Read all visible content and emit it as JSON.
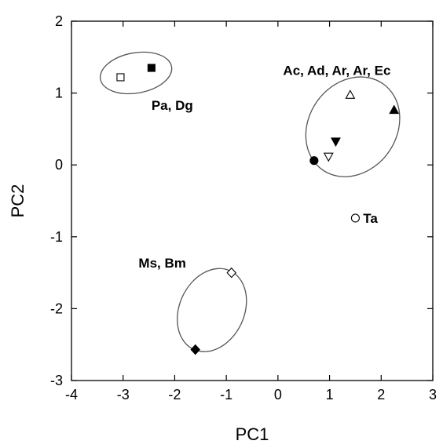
{
  "chart_data": {
    "type": "scatter",
    "title": "",
    "xlabel": "PC1",
    "ylabel": "PC2",
    "xlim": [
      -4,
      3
    ],
    "ylim": [
      -3,
      2
    ],
    "xticks": [
      -4,
      -3,
      -2,
      -1,
      0,
      1,
      2,
      3
    ],
    "yticks": [
      -3,
      -2,
      -1,
      0,
      1,
      2
    ],
    "xtick_labels": [
      "-4",
      "-3",
      "-2",
      "-1",
      "0",
      "1",
      "2",
      "3"
    ],
    "ytick_labels": [
      "-3",
      "-2",
      "-1",
      "0",
      "1",
      "2"
    ],
    "grid": false,
    "legend": "none",
    "points": [
      {
        "x": -3.05,
        "y": 1.22,
        "marker": "square",
        "filled": false
      },
      {
        "x": -2.45,
        "y": 1.35,
        "marker": "square",
        "filled": true
      },
      {
        "x": 1.4,
        "y": 0.97,
        "marker": "triangle-up",
        "filled": false
      },
      {
        "x": 2.25,
        "y": 0.76,
        "marker": "triangle-up",
        "filled": true
      },
      {
        "x": 1.12,
        "y": 0.33,
        "marker": "triangle-down",
        "filled": true
      },
      {
        "x": 0.98,
        "y": 0.12,
        "marker": "triangle-down",
        "filled": false
      },
      {
        "x": 0.7,
        "y": 0.06,
        "marker": "circle",
        "filled": true
      },
      {
        "x": 1.5,
        "y": -0.74,
        "marker": "circle",
        "filled": false
      },
      {
        "x": -0.9,
        "y": -1.5,
        "marker": "diamond",
        "filled": false
      },
      {
        "x": -1.6,
        "y": -2.57,
        "marker": "diamond",
        "filled": true
      }
    ],
    "groups": [
      {
        "label": "Pa, Dg",
        "ellipse": {
          "cx": -2.75,
          "cy": 1.28,
          "rx": 0.7,
          "ry": 0.28,
          "angle": -10
        },
        "label_x": -2.45,
        "label_y": 0.83
      },
      {
        "label": "Ac, Ad, Ar, Ar, Ec",
        "ellipse": {
          "cx": 1.45,
          "cy": 0.53,
          "rx": 1.02,
          "ry": 0.61,
          "angle": -55
        },
        "label_x": 0.1,
        "label_y": 1.32
      },
      {
        "label": "Ta",
        "ellipse": null,
        "label_x": 1.65,
        "label_y": -0.74
      },
      {
        "label": "Ms, Bm",
        "ellipse": {
          "cx": -1.28,
          "cy": -2.02,
          "rx": 0.84,
          "ry": 0.45,
          "angle": -65
        },
        "label_x": -2.7,
        "label_y": -1.36
      }
    ]
  }
}
